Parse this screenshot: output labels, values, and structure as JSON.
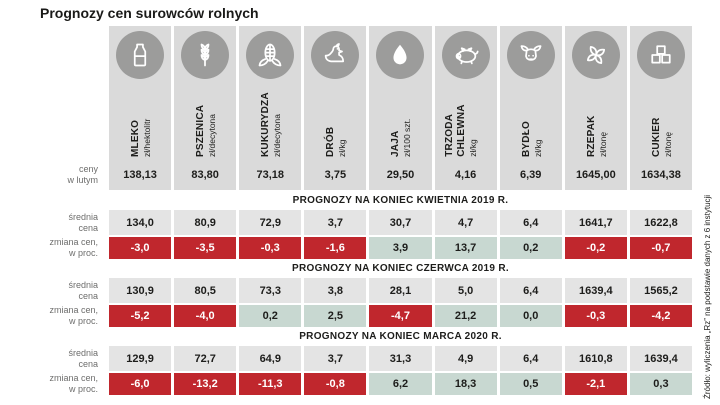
{
  "title": "Prognozy cen surowców rolnych",
  "source_note": "Źródło: wyliczenia „Rz” na podstawie danych z 6 instytucji",
  "colors": {
    "negative_bg": "#c0272d",
    "negative_text": "#ffffff",
    "positive_bg": "#c8d8d1",
    "positive_text": "#1d1d1b",
    "stripe_header": "#dadada",
    "stripe_row": "#e4e4e4",
    "icon_circle": "#9c9c9b",
    "row_label_text": "#6e6e6d",
    "title_text": "#1a1a18"
  },
  "chart_data": {
    "type": "table",
    "title": "Prognozy cen surowców rolnych",
    "columns": [
      {
        "name": "MLEKO",
        "unit": "zł/hektolitr",
        "icon": "milk-icon"
      },
      {
        "name": "PSZENICA",
        "unit": "zł/decytona",
        "icon": "wheat-icon"
      },
      {
        "name": "KUKURYDZA",
        "unit": "zł/decytona",
        "icon": "corn-icon"
      },
      {
        "name": "DRÓB",
        "unit": "zł/kg",
        "icon": "chicken-icon"
      },
      {
        "name": "JAJA",
        "unit": "zł/100 szt.",
        "icon": "egg-icon"
      },
      {
        "name": "TRZODA\nCHLEWNA",
        "unit": "zł/kg",
        "icon": "pig-icon"
      },
      {
        "name": "BYDŁO",
        "unit": "zł/kg",
        "icon": "cattle-icon"
      },
      {
        "name": "RZEPAK",
        "unit": "zł/tonę",
        "icon": "rapeseed-icon"
      },
      {
        "name": "CUKIER",
        "unit": "zł/tonę",
        "icon": "sugar-icon"
      }
    ],
    "base_row": {
      "label": "ceny\nw lutym",
      "values": [
        "138,13",
        "83,80",
        "73,18",
        "3,75",
        "29,50",
        "4,16",
        "6,39",
        "1645,00",
        "1634,38"
      ]
    },
    "sections": [
      {
        "header": "PROGNOZY NA KONIEC KWIETNIA 2019 R.",
        "rows": [
          {
            "label": "średnia\ncena",
            "type": "price",
            "values": [
              "134,0",
              "80,9",
              "72,9",
              "3,7",
              "30,7",
              "4,7",
              "6,4",
              "1641,7",
              "1622,8"
            ]
          },
          {
            "label": "zmiana cen,\nw proc.",
            "type": "change",
            "values": [
              "-3,0",
              "-3,5",
              "-0,3",
              "-1,6",
              "3,9",
              "13,7",
              "0,2",
              "-0,2",
              "-0,7"
            ]
          }
        ]
      },
      {
        "header": "PROGNOZY NA KONIEC CZERWCA 2019 R.",
        "rows": [
          {
            "label": "średnia\ncena",
            "type": "price",
            "values": [
              "130,9",
              "80,5",
              "73,3",
              "3,8",
              "28,1",
              "5,0",
              "6,4",
              "1639,4",
              "1565,2"
            ]
          },
          {
            "label": "zmiana cen,\nw proc.",
            "type": "change",
            "values": [
              "-5,2",
              "-4,0",
              "0,2",
              "2,5",
              "-4,7",
              "21,2",
              "0,0",
              "-0,3",
              "-4,2"
            ]
          }
        ]
      },
      {
        "header": "PROGNOZY NA KONIEC MARCA 2020 R.",
        "rows": [
          {
            "label": "średnia\ncena",
            "type": "price",
            "values": [
              "129,9",
              "72,7",
              "64,9",
              "3,7",
              "31,3",
              "4,9",
              "6,4",
              "1610,8",
              "1639,4"
            ]
          },
          {
            "label": "zmiana cen,\nw proc.",
            "type": "change",
            "values": [
              "-6,0",
              "-13,2",
              "-11,3",
              "-0,8",
              "6,2",
              "18,3",
              "0,5",
              "-2,1",
              "0,3"
            ]
          }
        ]
      }
    ]
  }
}
